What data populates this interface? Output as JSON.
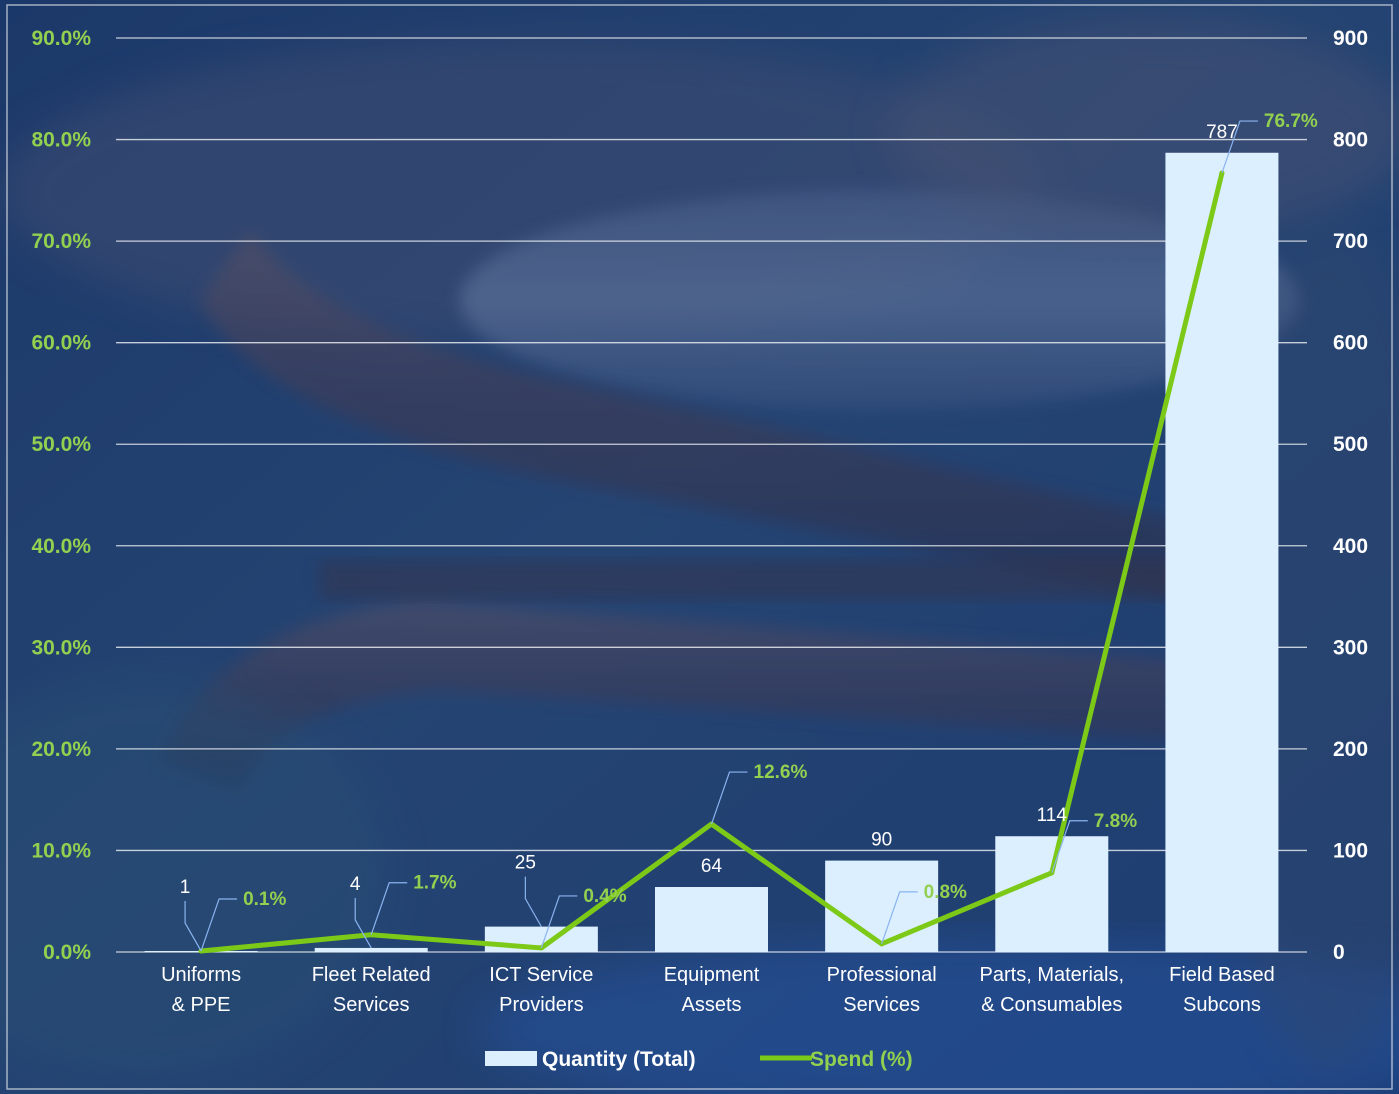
{
  "colors": {
    "bar": "#dcefff",
    "line": "#7dc918",
    "left_axis_text": "#92d050",
    "right_axis_text": "#ffffff",
    "grid": "#ffffff",
    "leader": "#8ab4f0",
    "background": "#1a3566"
  },
  "chart_data": {
    "type": "bar",
    "categories": [
      [
        "Uniforms",
        "& PPE"
      ],
      [
        "Fleet Related",
        "Services"
      ],
      [
        "ICT Service",
        "Providers"
      ],
      [
        "Equipment",
        "Assets"
      ],
      [
        "Professional",
        "Services"
      ],
      [
        "Parts, Materials,",
        "& Consumables"
      ],
      [
        "Field Based",
        "Subcons"
      ]
    ],
    "series": [
      {
        "name": "Quantity (Total)",
        "type": "bar",
        "axis": "right",
        "values": [
          1,
          4,
          25,
          64,
          90,
          114,
          787
        ],
        "labels": [
          "1",
          "4",
          "25",
          "64",
          "90",
          "114",
          "787"
        ]
      },
      {
        "name": "Spend (%)",
        "type": "line",
        "axis": "left",
        "values": [
          0.1,
          1.7,
          0.4,
          12.6,
          0.8,
          7.8,
          76.7
        ],
        "labels": [
          "0.1%",
          "1.7%",
          "0.4%",
          "12.6%",
          "0.8%",
          "7.8%",
          "76.7%"
        ]
      }
    ],
    "y_left": {
      "ticks": [
        "0.0%",
        "10.0%",
        "20.0%",
        "30.0%",
        "40.0%",
        "50.0%",
        "60.0%",
        "70.0%",
        "80.0%",
        "90.0%"
      ],
      "range": [
        0,
        90
      ]
    },
    "y_right": {
      "ticks": [
        "0",
        "100",
        "200",
        "300",
        "400",
        "500",
        "600",
        "700",
        "800",
        "900"
      ],
      "range": [
        0,
        900
      ]
    },
    "grid": true,
    "legend_position": "bottom",
    "legend": [
      {
        "name": "Quantity (Total)",
        "kind": "bar"
      },
      {
        "name": "Spend (%)",
        "kind": "line"
      }
    ]
  }
}
